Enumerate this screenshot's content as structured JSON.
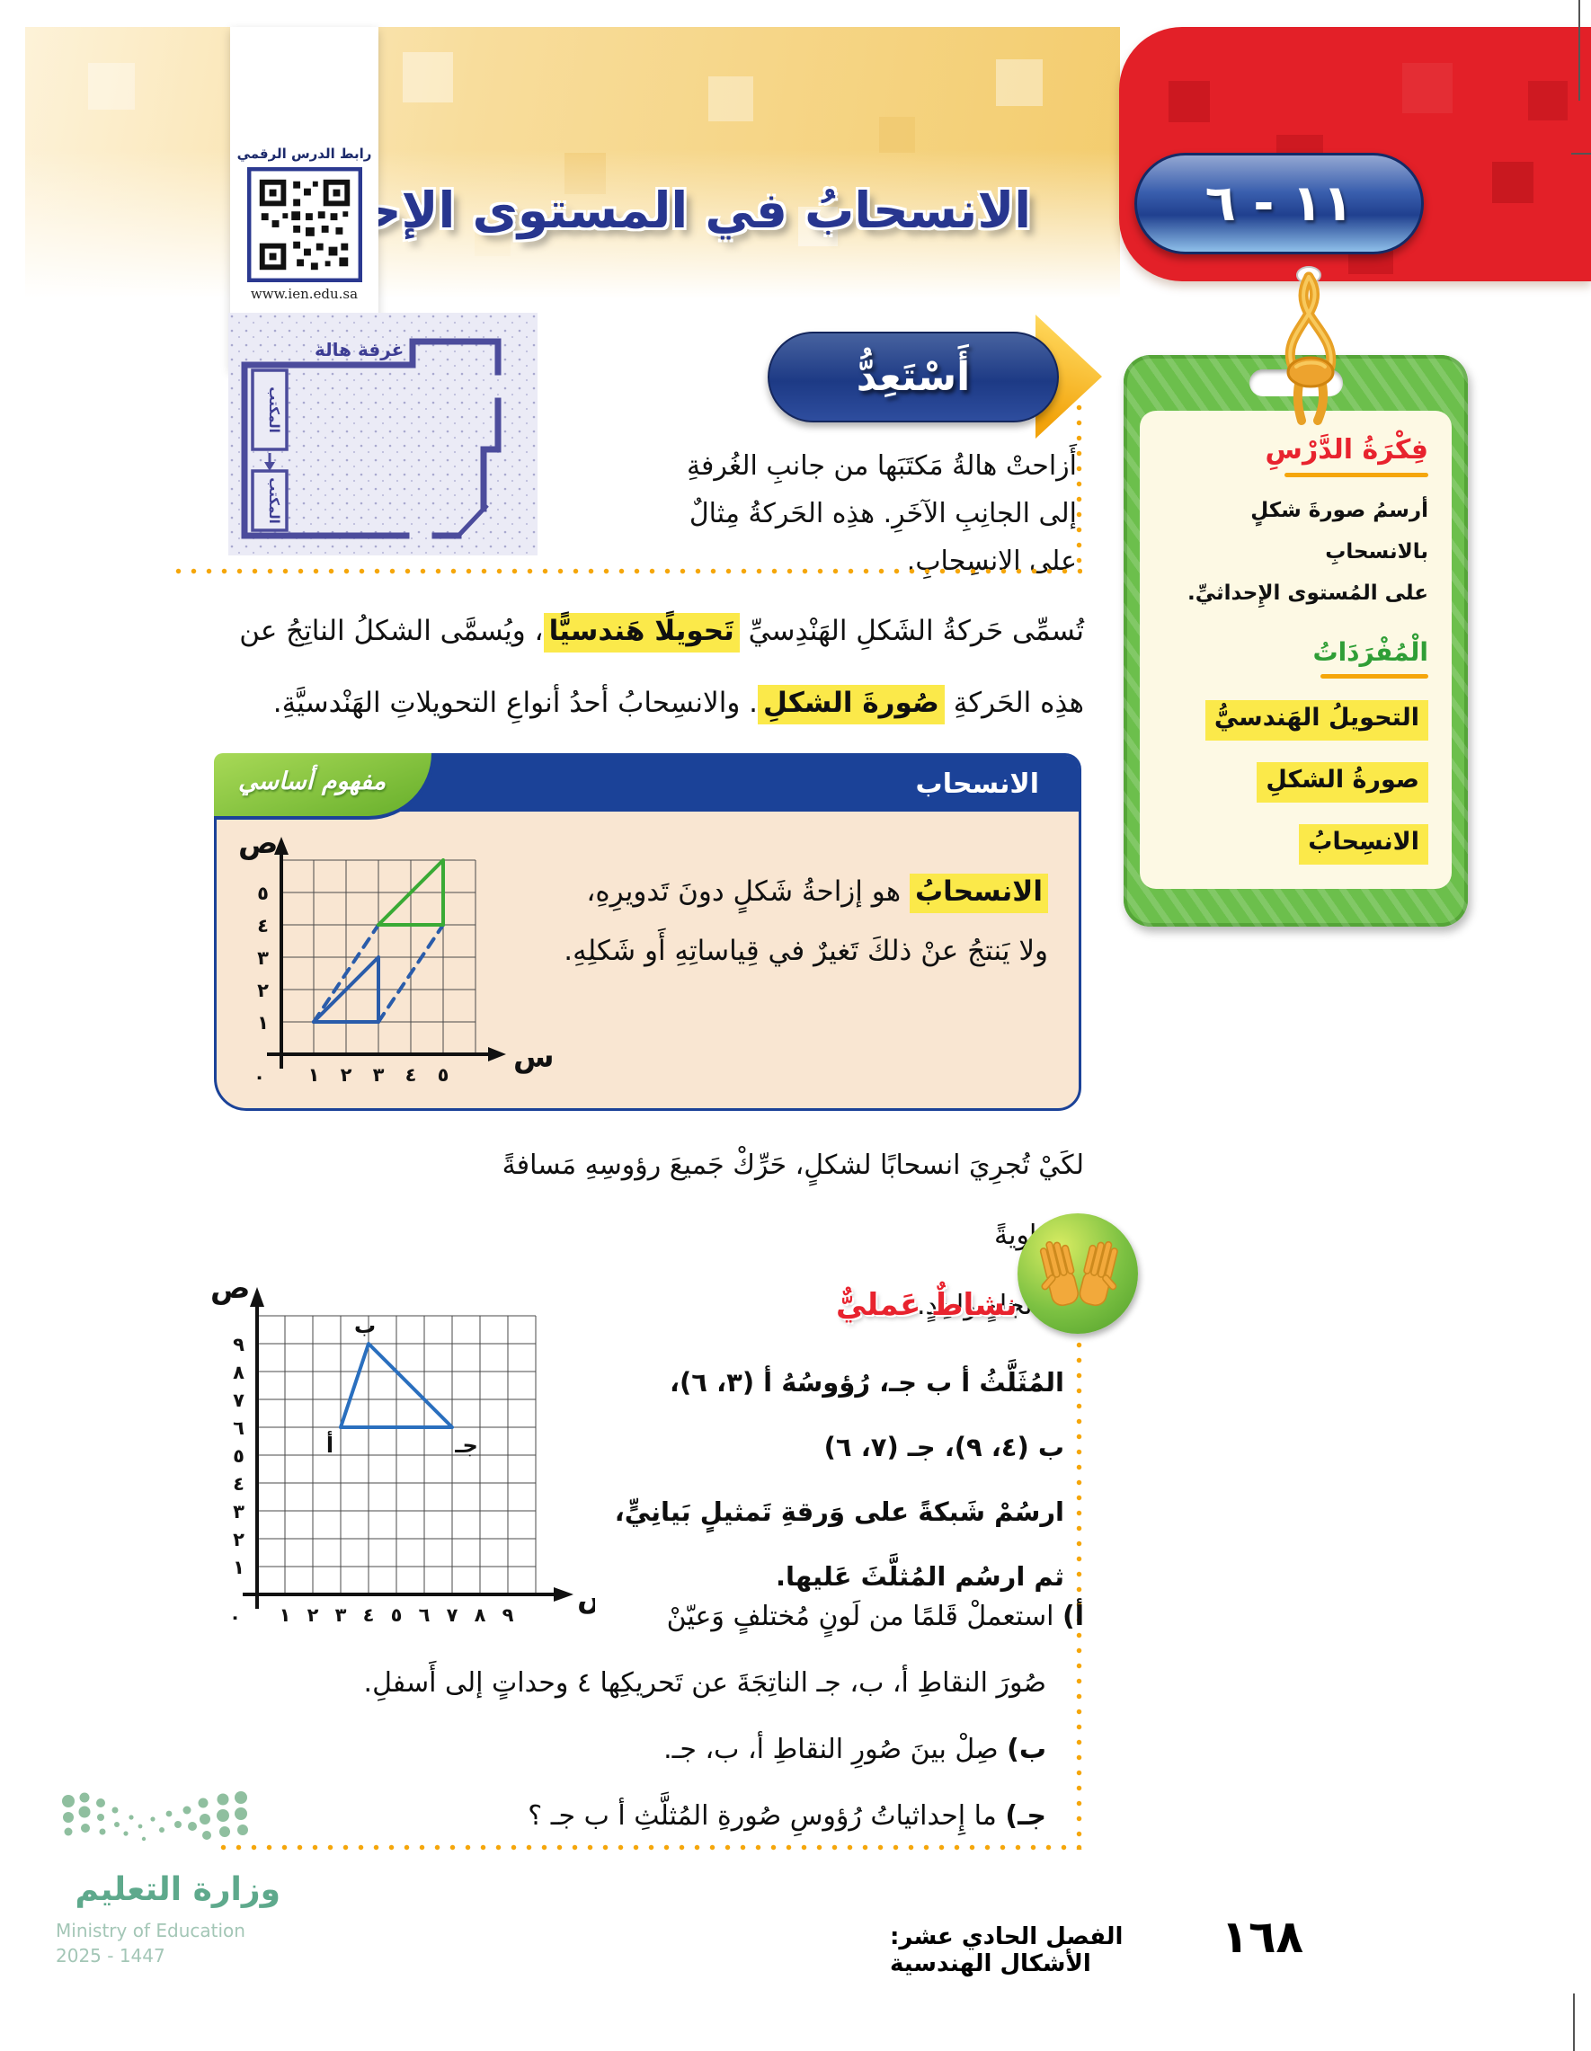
{
  "header": {
    "lesson_number": "١١ - ٦",
    "title": "الانسحابُ في المستوى الإحداثيِّ",
    "qr_label": "رابط الدرس الرقمي",
    "qr_url": "www.ien.edu.sa"
  },
  "get_ready": {
    "heading": "أَسْتَعِدُّ",
    "lines": [
      "أَزاحتْ هالةُ مَكتَبَها من جانبِ الغُرفةِ",
      "إلى الجانِبِ الآخَرِ. هذِه الحَركةُ مِثالٌ",
      "على الانسِحابِ."
    ],
    "room_label": "غرفة هالة",
    "desk_label_1": "المكتب",
    "desk_label_2": "المكتب"
  },
  "side_tag": {
    "idea_heading": "فِكْرَةُ الدَّرْسِ",
    "idea_lines": [
      "أرسمُ صورةَ شكلٍ بالانسحابِ",
      "على المُستوى الإِحداثيِّ."
    ],
    "vocab_heading": "الْمُفْرَدَاتُ",
    "vocab_items": [
      "التحويلُ الهَندسيُّ",
      "صورةُ الشكلِ",
      "الانسِحابُ"
    ]
  },
  "intro": {
    "l1_pre": "تُسمِّى حَركةُ الشَكلِ الهَنْدِسيِّ ",
    "l1_hl": "تَحويلًا هَندسيًّا",
    "l1_post": "، ويُسمَّى الشكلُ الناتِجُ عن",
    "l2_pre": "هذِه الحَركةِ ",
    "l2_hl": "صُورةَ الشكلِ",
    "l2_post": ". والانسِحابُ أحدُ أنواعِ التحويلاتِ الهَنْدسيَّةِ."
  },
  "concept_box": {
    "ribbon": "مفهوم أساسي",
    "title": "الانسحاب",
    "def_hl": "الانسحابُ",
    "def_l1": " هو إزاحةُ شَكلٍ دونَ تَدويرِهِ،",
    "def_l2": "ولا يَنتجُ عنْ ذلكَ تَغيرٌ في قِياساتِهِ أَو شَكلِهِ."
  },
  "translate_para": {
    "l1": "لكَيْ تُجرِيَ انسحابًا لشكلٍ، حَرِّكْ جَميعَ رؤوسِهِ مَسافةً مُتَساويةً",
    "l2": "في اتِّجاهٍ واحِدٍ."
  },
  "activity": {
    "heading": "نشاطٌ عَمليٌّ",
    "intro_lines": [
      "المُثَلَّثُ أ ب جـ، رُؤوسُهُ أ (٣، ٦)،",
      "ب (٤، ٩)، جـ (٧، ٦)",
      "ارسُمْ شَبكةً على وَرقةِ تَمثيلٍ بَيانِيٍّ،",
      "ثم ارسُم المُثلَّثَ عَليها."
    ],
    "steps": [
      {
        "label": "أ)",
        "text": " استعملْ قَلمًا من لَونٍ مُختلفٍ وَعيّنْ"
      },
      {
        "label": "",
        "text": "صُورَ النقاطِ أ، ب، جـ الناتِجَةَ عن تَحريكِها ٤ وحداتٍ إلى أَسفلِ."
      },
      {
        "label": "ب)",
        "text": " صِلْ بينَ صُورِ النقاطِ أ، ب، جـ."
      },
      {
        "label": "جـ)",
        "text": " ما إِحداثياتُ رُؤوسِ صُورةِ المُثلَّثِ أ ب جـ ؟"
      }
    ]
  },
  "footer": {
    "ministry_ar": "وزارة التعليم",
    "ministry_en": "Ministry of Education",
    "years": "2025 - 1447",
    "chapter": "الفصل الحادي عشر: الأشكال الهندسية",
    "page_number": "١٦٨"
  },
  "colors": {
    "header_red": "#e32028",
    "pill_blue": "#20408f",
    "title_blue": "#28368f",
    "accent_orange": "#f5a60a",
    "highlight_yellow": "#fbe94a",
    "tag_green": "#6cbf4c",
    "concept_bg": "#f9e6d2",
    "concept_border": "#1b4298",
    "shape_blue": "#2a5caa",
    "shape_green": "#3aaa35",
    "heading_red": "#e8232e",
    "footer_green": "#5ea98c"
  },
  "chart_data": [
    {
      "id": "concept-grid",
      "type": "line",
      "xlabel": "س",
      "ylabel": "ص",
      "origin_label": "٠",
      "xlim": [
        0,
        6
      ],
      "ylim": [
        0,
        6
      ],
      "x_ticks": [
        "١",
        "٢",
        "٣",
        "٤",
        "٥"
      ],
      "y_ticks": [
        "١",
        "٢",
        "٣",
        "٤",
        "٥"
      ],
      "grid": true,
      "series": [
        {
          "name": "original-triangle",
          "color": "#2a5caa",
          "dash": false,
          "points": [
            [
              1,
              1
            ],
            [
              3,
              1
            ],
            [
              3,
              3
            ],
            [
              1,
              1
            ]
          ]
        },
        {
          "name": "image-triangle",
          "color": "#3aaa35",
          "dash": false,
          "points": [
            [
              3,
              4
            ],
            [
              5,
              4
            ],
            [
              5,
              6
            ],
            [
              3,
              4
            ]
          ]
        },
        {
          "name": "translation-guide-1",
          "color": "#2a5caa",
          "dash": true,
          "points": [
            [
              1,
              1
            ],
            [
              3,
              4
            ]
          ]
        },
        {
          "name": "translation-guide-2",
          "color": "#2a5caa",
          "dash": true,
          "points": [
            [
              3,
              1
            ],
            [
              5,
              4
            ]
          ]
        }
      ]
    },
    {
      "id": "activity-grid",
      "type": "line",
      "xlabel": "س",
      "ylabel": "ص",
      "origin_label": "٠",
      "xlim": [
        0,
        10
      ],
      "ylim": [
        0,
        10
      ],
      "x_ticks": [
        "١",
        "٢",
        "٣",
        "٤",
        "٥",
        "٦",
        "٧",
        "٨",
        "٩"
      ],
      "y_ticks": [
        "١",
        "٢",
        "٣",
        "٤",
        "٥",
        "٦",
        "٧",
        "٨",
        "٩"
      ],
      "grid": true,
      "series": [
        {
          "name": "triangle-abj",
          "color": "#2a6fbe",
          "dash": false,
          "points": [
            [
              3,
              6
            ],
            [
              4,
              9
            ],
            [
              7,
              6
            ],
            [
              3,
              6
            ]
          ]
        }
      ],
      "vertex_labels": [
        {
          "text": "أ",
          "x": 3,
          "y": 6
        },
        {
          "text": "ب",
          "x": 4,
          "y": 9
        },
        {
          "text": "جـ",
          "x": 7,
          "y": 6
        }
      ]
    }
  ]
}
